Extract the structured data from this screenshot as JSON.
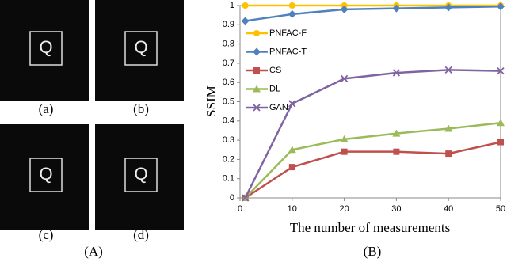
{
  "panels": {
    "labels": [
      "(a)",
      "(b)",
      "(c)",
      "(d)"
    ],
    "image_text": [
      "Q",
      "Q",
      "Q",
      "Q"
    ],
    "caption": "(A)"
  },
  "chart_data": {
    "type": "line",
    "caption": "(B)",
    "x_label": "The number of measurements",
    "y_label": "SSIM",
    "x": [
      1,
      10,
      20,
      30,
      40,
      50
    ],
    "xlim": [
      0,
      50
    ],
    "xticks": [
      0,
      10,
      20,
      30,
      40,
      50
    ],
    "ylim": [
      0,
      1
    ],
    "yticks": [
      0,
      0.1,
      0.2,
      0.3,
      0.4,
      0.5,
      0.6,
      0.7,
      0.8,
      0.9,
      1
    ],
    "legend": "top-left",
    "series": [
      {
        "name": "PNFAC-F",
        "color": "#ffc000",
        "marker": "circle",
        "values": [
          1,
          1,
          1,
          1,
          1,
          1
        ]
      },
      {
        "name": "PNFAC-T",
        "color": "#4f81bd",
        "marker": "diamond",
        "values": [
          0.92,
          0.955,
          0.98,
          0.985,
          0.99,
          0.995
        ]
      },
      {
        "name": "CS",
        "color": "#c0504d",
        "marker": "square",
        "values": [
          0,
          0.16,
          0.24,
          0.24,
          0.23,
          0.29
        ]
      },
      {
        "name": "DL",
        "color": "#9bbb59",
        "marker": "triangle",
        "values": [
          0,
          0.25,
          0.305,
          0.335,
          0.36,
          0.39
        ]
      },
      {
        "name": "GAN",
        "color": "#8064a2",
        "marker": "x",
        "values": [
          0,
          0.49,
          0.62,
          0.65,
          0.665,
          0.66
        ]
      }
    ]
  }
}
